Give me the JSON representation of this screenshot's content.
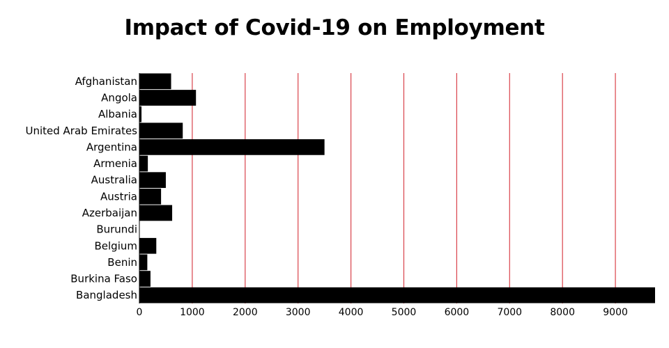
{
  "chart_data": {
    "type": "bar",
    "orientation": "horizontal",
    "title": "Impact of Covid-19 on Employment",
    "xlabel": "",
    "ylabel": "",
    "categories": [
      "Afghanistan",
      "Angola",
      "Albania",
      "United Arab Emirates",
      "Argentina",
      "Armenia",
      "Australia",
      "Austria",
      "Azerbaijan",
      "Burundi",
      "Belgium",
      "Benin",
      "Burkina Faso",
      "Bangladesh"
    ],
    "values": [
      600,
      1070,
      40,
      820,
      3500,
      160,
      500,
      410,
      620,
      0,
      320,
      150,
      210,
      9750
    ],
    "xlim": [
      0,
      9750
    ],
    "xticks": [
      0,
      1000,
      2000,
      3000,
      4000,
      5000,
      6000,
      7000,
      8000,
      9000
    ],
    "grid": "vertical",
    "legend": "none",
    "colors": {
      "bar": "#000000",
      "grid": "#d9424a"
    }
  }
}
